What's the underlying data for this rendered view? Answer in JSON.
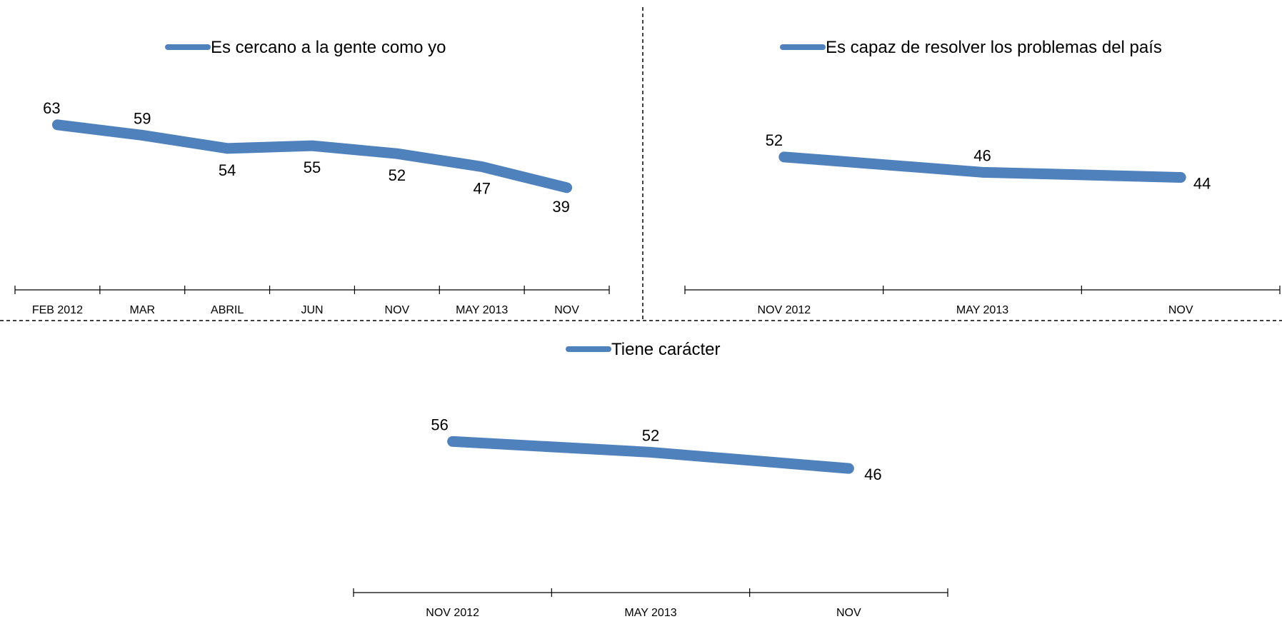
{
  "chart_data": [
    {
      "type": "line",
      "categories": [
        "FEB 2012",
        "MAR",
        "ABRIL",
        "JUN",
        "NOV",
        "MAY  2013",
        "NOV"
      ],
      "series": [
        {
          "name": "Es cercano a la gente como yo",
          "color": "#4f81bd",
          "values": [
            63,
            59,
            54,
            55,
            52,
            47,
            39
          ]
        }
      ],
      "ylim": [
        0,
        100
      ]
    },
    {
      "type": "line",
      "categories": [
        "NOV 2012",
        "MAY  2013",
        "NOV"
      ],
      "series": [
        {
          "name": "Es capaz de resolver los problemas del país",
          "color": "#4f81bd",
          "values": [
            52,
            46,
            44
          ]
        }
      ],
      "ylim": [
        0,
        100
      ]
    },
    {
      "type": "line",
      "categories": [
        "NOV 2012",
        "MAY 2013",
        "NOV"
      ],
      "series": [
        {
          "name": "Tiene carácter",
          "color": "#4f81bd",
          "values": [
            56,
            52,
            46
          ]
        }
      ],
      "ylim": [
        0,
        100
      ]
    }
  ]
}
